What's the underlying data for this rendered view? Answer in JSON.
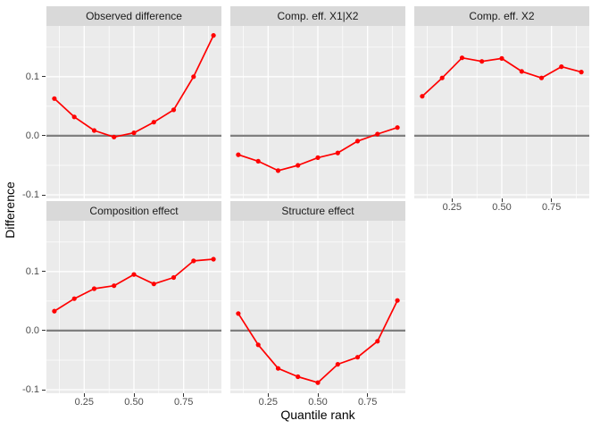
{
  "figure": {
    "x_axis_title": "Quantile rank",
    "y_axis_title": "Difference"
  },
  "chart_data": {
    "type": "line",
    "facet_layout": [
      [
        "Observed difference",
        "Comp. eff. X1|X2",
        "Comp. eff. X2"
      ],
      [
        "Composition effect",
        "Structure effect",
        null
      ]
    ],
    "x": [
      0.1,
      0.2,
      0.3,
      0.4,
      0.5,
      0.6,
      0.7,
      0.8,
      0.9
    ],
    "series": [
      {
        "name": "Observed difference",
        "values": [
          0.063,
          0.032,
          0.009,
          -0.002,
          0.005,
          0.023,
          0.044,
          0.1,
          0.17
        ]
      },
      {
        "name": "Comp. eff. X1|X2",
        "values": [
          -0.032,
          -0.043,
          -0.059,
          -0.05,
          -0.037,
          -0.029,
          -0.009,
          0.003,
          0.014
        ]
      },
      {
        "name": "Comp. eff. X2",
        "values": [
          0.067,
          0.098,
          0.132,
          0.126,
          0.131,
          0.109,
          0.098,
          0.117,
          0.108
        ]
      },
      {
        "name": "Composition effect",
        "values": [
          0.033,
          0.054,
          0.071,
          0.076,
          0.095,
          0.079,
          0.09,
          0.118,
          0.121
        ]
      },
      {
        "name": "Structure effect",
        "values": [
          0.029,
          -0.024,
          -0.064,
          -0.078,
          -0.088,
          -0.057,
          -0.045,
          -0.018,
          0.051
        ]
      }
    ],
    "title": "",
    "xlabel": "Quantile rank",
    "ylabel": "Difference",
    "x_ticks": [
      0.25,
      0.5,
      0.75
    ],
    "x_tick_labels": [
      "0.25",
      "0.50",
      "0.75"
    ],
    "y_ticks": [
      0.1,
      0.0,
      -0.1
    ],
    "y_tick_labels": [
      "0.1",
      "0.0",
      "-0.1"
    ],
    "xlim": [
      0.06,
      0.94
    ],
    "ylim": [
      -0.106,
      0.186
    ],
    "grid": true,
    "legend": "none",
    "zero_reference_line": 0.0,
    "colors": {
      "line": "#ff0000",
      "point": "#ff0000",
      "panel_bg": "#ebebeb",
      "strip_bg": "#d9d9d9",
      "grid": "#ffffff",
      "zero_line": "#7f7f7f",
      "tick_text": "#4d4d4d",
      "strip_text": "#1a1a1a",
      "title_text": "#000000"
    }
  }
}
